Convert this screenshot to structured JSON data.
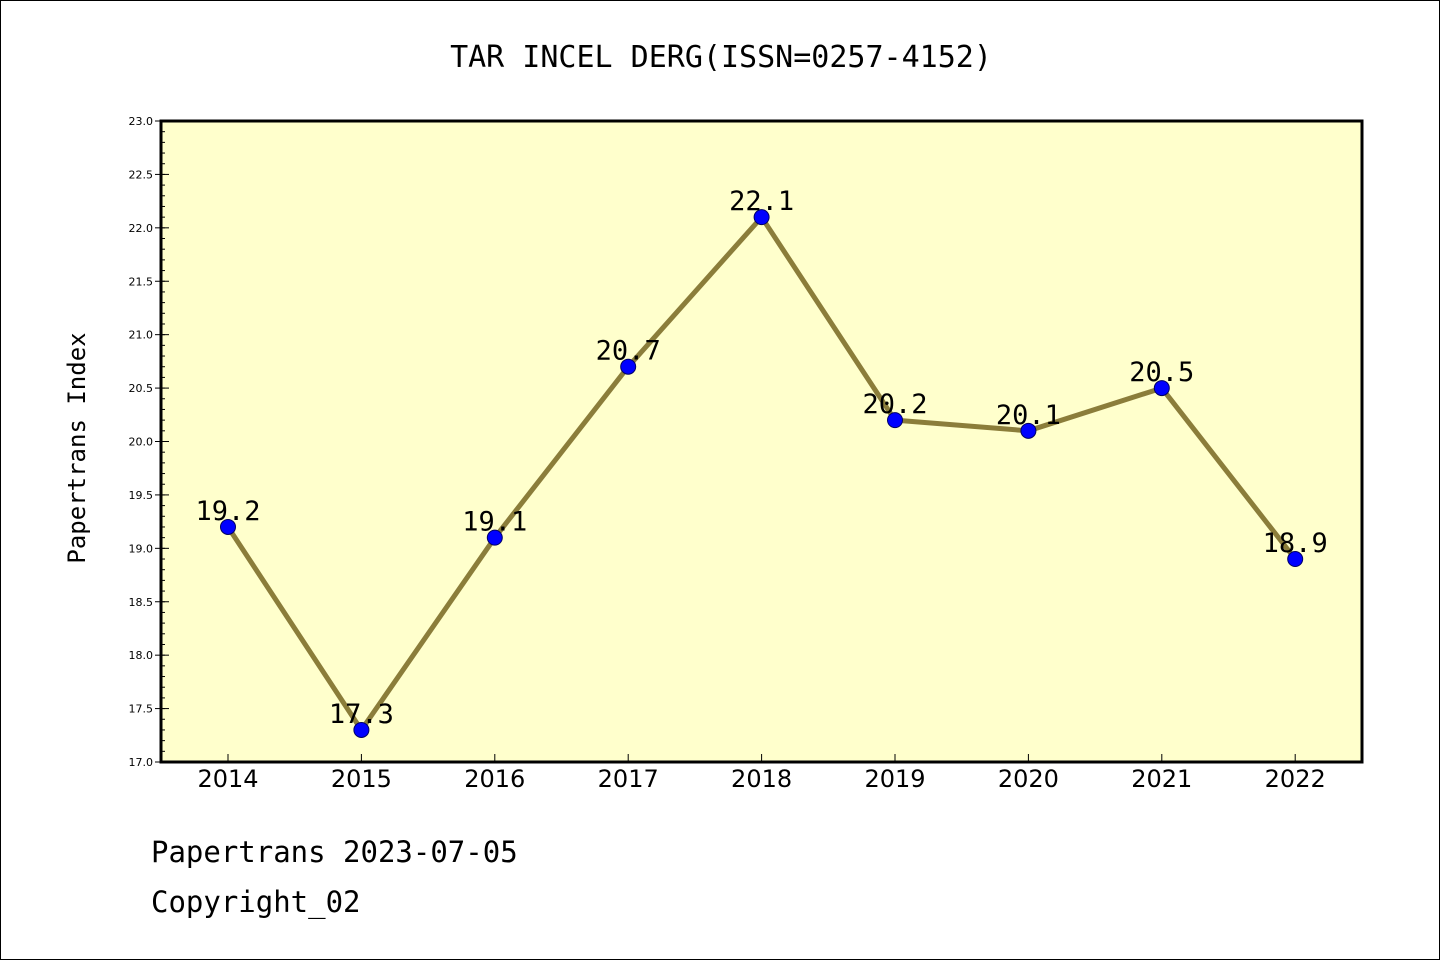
{
  "chart_data": {
    "type": "line",
    "title": "TAR INCEL DERG(ISSN=0257-4152)",
    "xlabel": "",
    "ylabel": "Papertrans Index",
    "categories": [
      "2014",
      "2015",
      "2016",
      "2017",
      "2018",
      "2019",
      "2020",
      "2021",
      "2022"
    ],
    "series": [
      {
        "values": [
          19.2,
          17.3,
          19.1,
          20.7,
          22.1,
          20.2,
          20.1,
          20.5,
          18.9
        ],
        "data_labels": [
          "19.2",
          "17.3",
          "19.1",
          "20.7",
          "22.1",
          "20.2",
          "20.1",
          "20.5",
          "18.9"
        ]
      }
    ],
    "ylim": [
      17.0,
      23.0
    ],
    "y_ticks": [
      "17.0",
      "17.5",
      "18.0",
      "18.5",
      "19.0",
      "19.5",
      "20.0",
      "20.5",
      "21.0",
      "21.5",
      "22.0",
      "22.5",
      "23.0"
    ],
    "grid": false,
    "legend": "none",
    "colors": {
      "plot_background": "#ffffcc",
      "line": "#8b7d3a",
      "marker_fill": "#0000ff",
      "marker_edge": "#000066",
      "axes": "#000000"
    }
  },
  "footer": {
    "date_line": "Papertrans 2023-07-05",
    "copyright_line": "Copyright_02"
  }
}
